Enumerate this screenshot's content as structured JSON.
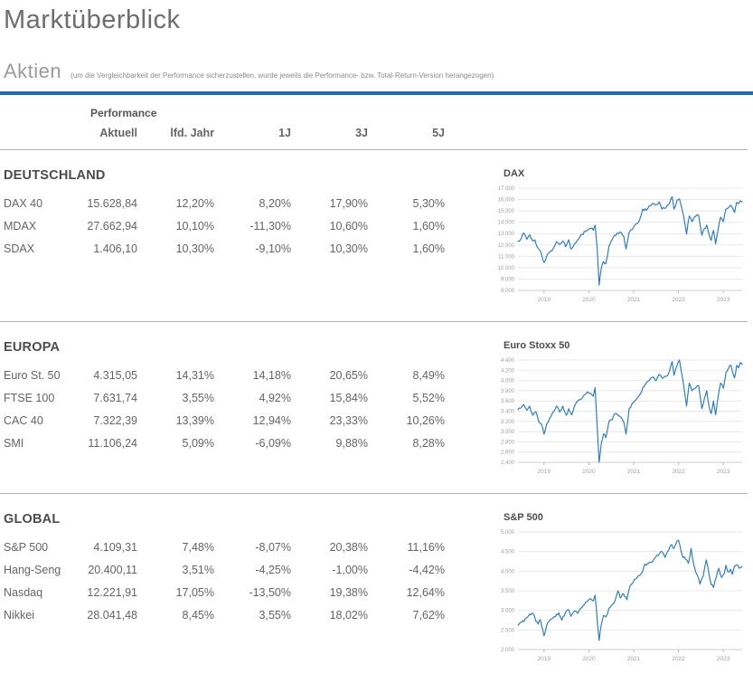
{
  "page": {
    "title": "Marktüberblick",
    "section_label": "Aktien",
    "section_note": "(um die Vergleichbarkeit der Performance sicherzustellen, wurde jeweils die Performance- bzw. Total-Return-Version herangezogen)"
  },
  "colors": {
    "accent_rule": "#1f6fb8",
    "chart_line": "#2979c8",
    "title_text": "#6d6d6d",
    "muted_text": "#9a9a9a",
    "table_text": "#646464",
    "heading_text": "#4c4c4c",
    "grid_line": "#e8e8e8",
    "divider": "#b3b3b3",
    "axis_label": "#a0a0a0"
  },
  "table": {
    "group_header": "Performance",
    "columns": [
      "Aktuell",
      "lfd. Jahr",
      "1J",
      "3J",
      "5J"
    ],
    "sections": [
      {
        "title": "DEUTSCHLAND",
        "rows": [
          {
            "label": "DAX 40",
            "values": [
              "15.628,84",
              "12,20%",
              "8,20%",
              "17,90%",
              "5,30%"
            ]
          },
          {
            "label": "MDAX",
            "values": [
              "27.662,94",
              "10,10%",
              "-11,30%",
              "10,60%",
              "1,60%"
            ]
          },
          {
            "label": "SDAX",
            "values": [
              "1.406,10",
              "10,30%",
              "-9,10%",
              "10,30%",
              "1,60%"
            ]
          }
        ]
      },
      {
        "title": "EUROPA",
        "rows": [
          {
            "label": "Euro St. 50",
            "values": [
              "4.315,05",
              "14,31%",
              "14,18%",
              "20,65%",
              "8,49%"
            ]
          },
          {
            "label": "FTSE 100",
            "values": [
              "7.631,74",
              "3,55%",
              "4,92%",
              "15,84%",
              "5,52%"
            ]
          },
          {
            "label": "CAC 40",
            "values": [
              "7.322,39",
              "13,39%",
              "12,94%",
              "23,33%",
              "10,26%"
            ]
          },
          {
            "label": "SMI",
            "values": [
              "11.106,24",
              "5,09%",
              "-6,09%",
              "9,88%",
              "8,28%"
            ]
          }
        ]
      },
      {
        "title": "GLOBAL",
        "rows": [
          {
            "label": "S&P 500",
            "values": [
              "4.109,31",
              "7,48%",
              "-8,07%",
              "20,38%",
              "11,16%"
            ]
          },
          {
            "label": "Hang-Seng",
            "values": [
              "20.400,11",
              "3,51%",
              "-4,25%",
              "-1,00%",
              "-4,42%"
            ]
          },
          {
            "label": "Nasdaq",
            "values": [
              "12.221,91",
              "17,05%",
              "-13,50%",
              "19,38%",
              "12,64%"
            ]
          },
          {
            "label": "Nikkei",
            "values": [
              "28.041,48",
              "8,45%",
              "3,55%",
              "18,02%",
              "7,62%"
            ]
          }
        ]
      }
    ]
  },
  "chart_data": [
    {
      "type": "line",
      "title": "DAX",
      "ylabel": "",
      "xlabel": "",
      "ylim": [
        8000,
        17000
      ],
      "y_step": 1000,
      "xlim": [
        2018.42,
        2023.42
      ],
      "x_ticks": [
        2019,
        2020,
        2021,
        2022,
        2023
      ],
      "y_tick_labels": [
        "8.000",
        "9.000",
        "10.000",
        "11.000",
        "12.000",
        "13.000",
        "14.000",
        "15.000",
        "16.000",
        "17.000"
      ],
      "grid": true,
      "legend": false,
      "points": [
        [
          2018.42,
          12350
        ],
        [
          2018.5,
          12650
        ],
        [
          2018.55,
          13050
        ],
        [
          2018.62,
          12500
        ],
        [
          2018.68,
          12900
        ],
        [
          2018.75,
          12350
        ],
        [
          2018.8,
          12450
        ],
        [
          2018.85,
          11800
        ],
        [
          2018.92,
          11450
        ],
        [
          2019.0,
          10450
        ],
        [
          2019.06,
          11000
        ],
        [
          2019.12,
          11350
        ],
        [
          2019.2,
          11650
        ],
        [
          2019.28,
          12300
        ],
        [
          2019.35,
          12050
        ],
        [
          2019.42,
          12350
        ],
        [
          2019.48,
          11850
        ],
        [
          2019.55,
          12450
        ],
        [
          2019.6,
          11650
        ],
        [
          2019.68,
          12100
        ],
        [
          2019.75,
          12450
        ],
        [
          2019.85,
          12950
        ],
        [
          2019.95,
          13250
        ],
        [
          2020.04,
          13450
        ],
        [
          2020.1,
          13300
        ],
        [
          2020.14,
          13750
        ],
        [
          2020.19,
          11500
        ],
        [
          2020.23,
          8450
        ],
        [
          2020.28,
          10000
        ],
        [
          2020.33,
          10550
        ],
        [
          2020.38,
          10350
        ],
        [
          2020.45,
          11900
        ],
        [
          2020.5,
          12350
        ],
        [
          2020.57,
          12850
        ],
        [
          2020.63,
          13050
        ],
        [
          2020.7,
          13150
        ],
        [
          2020.78,
          12750
        ],
        [
          2020.83,
          11650
        ],
        [
          2020.9,
          13100
        ],
        [
          2020.97,
          13350
        ],
        [
          2021.05,
          13850
        ],
        [
          2021.12,
          14050
        ],
        [
          2021.2,
          15150
        ],
        [
          2021.28,
          15050
        ],
        [
          2021.35,
          15450
        ],
        [
          2021.42,
          15650
        ],
        [
          2021.5,
          15550
        ],
        [
          2021.57,
          15800
        ],
        [
          2021.63,
          15150
        ],
        [
          2021.72,
          15250
        ],
        [
          2021.8,
          15650
        ],
        [
          2021.86,
          16250
        ],
        [
          2021.9,
          15150
        ],
        [
          2021.97,
          15950
        ],
        [
          2022.02,
          16050
        ],
        [
          2022.08,
          15150
        ],
        [
          2022.14,
          13950
        ],
        [
          2022.18,
          12950
        ],
        [
          2022.24,
          14550
        ],
        [
          2022.3,
          14050
        ],
        [
          2022.38,
          14500
        ],
        [
          2022.45,
          14600
        ],
        [
          2022.52,
          12850
        ],
        [
          2022.58,
          13450
        ],
        [
          2022.63,
          13750
        ],
        [
          2022.68,
          12950
        ],
        [
          2022.73,
          12400
        ],
        [
          2022.78,
          13300
        ],
        [
          2022.83,
          12100
        ],
        [
          2022.88,
          13250
        ],
        [
          2022.94,
          14450
        ],
        [
          2023.0,
          14050
        ],
        [
          2023.06,
          15150
        ],
        [
          2023.12,
          15300
        ],
        [
          2023.17,
          15500
        ],
        [
          2023.21,
          15200
        ],
        [
          2023.25,
          14850
        ],
        [
          2023.3,
          15750
        ],
        [
          2023.34,
          15650
        ],
        [
          2023.38,
          15900
        ],
        [
          2023.42,
          15800
        ]
      ]
    },
    {
      "type": "line",
      "title": "Euro Stoxx 50",
      "ylabel": "",
      "xlabel": "",
      "ylim": [
        2400,
        4400
      ],
      "y_step": 200,
      "xlim": [
        2018.42,
        2023.42
      ],
      "x_ticks": [
        2019,
        2020,
        2021,
        2022,
        2023
      ],
      "y_tick_labels": [
        "2.400",
        "2.600",
        "2.800",
        "3.000",
        "3.200",
        "3.400",
        "3.600",
        "3.800",
        "4.000",
        "4.200",
        "4.400"
      ],
      "grid": true,
      "legend": false,
      "points": [
        [
          2018.42,
          3430
        ],
        [
          2018.5,
          3480
        ],
        [
          2018.55,
          3530
        ],
        [
          2018.62,
          3420
        ],
        [
          2018.68,
          3500
        ],
        [
          2018.75,
          3320
        ],
        [
          2018.82,
          3390
        ],
        [
          2018.88,
          3200
        ],
        [
          2018.94,
          3150
        ],
        [
          2019.0,
          2950
        ],
        [
          2019.06,
          3150
        ],
        [
          2019.12,
          3250
        ],
        [
          2019.2,
          3380
        ],
        [
          2019.28,
          3500
        ],
        [
          2019.35,
          3380
        ],
        [
          2019.42,
          3500
        ],
        [
          2019.5,
          3320
        ],
        [
          2019.55,
          3450
        ],
        [
          2019.62,
          3330
        ],
        [
          2019.7,
          3530
        ],
        [
          2019.8,
          3620
        ],
        [
          2019.9,
          3720
        ],
        [
          2019.97,
          3780
        ],
        [
          2020.04,
          3750
        ],
        [
          2020.1,
          3690
        ],
        [
          2020.14,
          3860
        ],
        [
          2020.19,
          3050
        ],
        [
          2020.23,
          2400
        ],
        [
          2020.28,
          2790
        ],
        [
          2020.33,
          2960
        ],
        [
          2020.38,
          2880
        ],
        [
          2020.45,
          3200
        ],
        [
          2020.52,
          3230
        ],
        [
          2020.58,
          3350
        ],
        [
          2020.65,
          3320
        ],
        [
          2020.72,
          3280
        ],
        [
          2020.78,
          3180
        ],
        [
          2020.83,
          2950
        ],
        [
          2020.9,
          3450
        ],
        [
          2020.97,
          3560
        ],
        [
          2021.05,
          3620
        ],
        [
          2021.12,
          3700
        ],
        [
          2021.2,
          3850
        ],
        [
          2021.28,
          3950
        ],
        [
          2021.35,
          4000
        ],
        [
          2021.42,
          4060
        ],
        [
          2021.5,
          4000
        ],
        [
          2021.57,
          4120
        ],
        [
          2021.63,
          4050
        ],
        [
          2021.72,
          4080
        ],
        [
          2021.8,
          4180
        ],
        [
          2021.86,
          4370
        ],
        [
          2021.9,
          4100
        ],
        [
          2021.97,
          4300
        ],
        [
          2022.02,
          4400
        ],
        [
          2022.08,
          4100
        ],
        [
          2022.14,
          3750
        ],
        [
          2022.18,
          3500
        ],
        [
          2022.24,
          3950
        ],
        [
          2022.3,
          3800
        ],
        [
          2022.38,
          3850
        ],
        [
          2022.45,
          3900
        ],
        [
          2022.52,
          3450
        ],
        [
          2022.58,
          3650
        ],
        [
          2022.63,
          3800
        ],
        [
          2022.68,
          3500
        ],
        [
          2022.73,
          3350
        ],
        [
          2022.78,
          3600
        ],
        [
          2022.83,
          3330
        ],
        [
          2022.88,
          3650
        ],
        [
          2022.94,
          3950
        ],
        [
          2023.0,
          3850
        ],
        [
          2023.06,
          4150
        ],
        [
          2023.12,
          4250
        ],
        [
          2023.17,
          4300
        ],
        [
          2023.21,
          4150
        ],
        [
          2023.25,
          4050
        ],
        [
          2023.3,
          4300
        ],
        [
          2023.34,
          4250
        ],
        [
          2023.38,
          4350
        ],
        [
          2023.42,
          4320
        ]
      ]
    },
    {
      "type": "line",
      "title": "S&P 500",
      "ylabel": "",
      "xlabel": "",
      "ylim": [
        2000,
        5000
      ],
      "y_step": 500,
      "xlim": [
        2018.42,
        2023.42
      ],
      "x_ticks": [
        2019,
        2020,
        2021,
        2022,
        2023
      ],
      "y_tick_labels": [
        "2.000",
        "2.500",
        "3.000",
        "3.500",
        "4.000",
        "4.500",
        "5.000"
      ],
      "grid": true,
      "legend": false,
      "points": [
        [
          2018.42,
          2620
        ],
        [
          2018.5,
          2700
        ],
        [
          2018.58,
          2780
        ],
        [
          2018.65,
          2850
        ],
        [
          2018.73,
          2930
        ],
        [
          2018.78,
          2880
        ],
        [
          2018.82,
          2720
        ],
        [
          2018.87,
          2650
        ],
        [
          2018.92,
          2760
        ],
        [
          2019.0,
          2350
        ],
        [
          2019.06,
          2620
        ],
        [
          2019.12,
          2720
        ],
        [
          2019.2,
          2800
        ],
        [
          2019.28,
          2900
        ],
        [
          2019.33,
          2940
        ],
        [
          2019.4,
          2750
        ],
        [
          2019.48,
          2950
        ],
        [
          2019.55,
          3020
        ],
        [
          2019.6,
          2850
        ],
        [
          2019.68,
          2980
        ],
        [
          2019.75,
          2920
        ],
        [
          2019.82,
          3050
        ],
        [
          2019.9,
          3140
        ],
        [
          2019.97,
          3230
        ],
        [
          2020.04,
          3300
        ],
        [
          2020.1,
          3240
        ],
        [
          2020.14,
          3390
        ],
        [
          2020.19,
          2710
        ],
        [
          2020.23,
          2230
        ],
        [
          2020.28,
          2650
        ],
        [
          2020.33,
          2870
        ],
        [
          2020.38,
          2830
        ],
        [
          2020.45,
          3050
        ],
        [
          2020.52,
          3150
        ],
        [
          2020.58,
          3230
        ],
        [
          2020.65,
          3500
        ],
        [
          2020.7,
          3320
        ],
        [
          2020.75,
          3420
        ],
        [
          2020.8,
          3350
        ],
        [
          2020.85,
          3270
        ],
        [
          2020.92,
          3620
        ],
        [
          2020.98,
          3700
        ],
        [
          2021.05,
          3800
        ],
        [
          2021.1,
          3880
        ],
        [
          2021.17,
          3940
        ],
        [
          2021.25,
          4180
        ],
        [
          2021.32,
          4200
        ],
        [
          2021.4,
          4230
        ],
        [
          2021.48,
          4350
        ],
        [
          2021.55,
          4400
        ],
        [
          2021.63,
          4500
        ],
        [
          2021.7,
          4350
        ],
        [
          2021.78,
          4530
        ],
        [
          2021.85,
          4680
        ],
        [
          2021.9,
          4580
        ],
        [
          2021.97,
          4770
        ],
        [
          2022.0,
          4790
        ],
        [
          2022.06,
          4500
        ],
        [
          2022.1,
          4350
        ],
        [
          2022.16,
          4300
        ],
        [
          2022.22,
          4200
        ],
        [
          2022.28,
          4580
        ],
        [
          2022.35,
          4130
        ],
        [
          2022.42,
          3900
        ],
        [
          2022.48,
          3670
        ],
        [
          2022.55,
          3870
        ],
        [
          2022.62,
          4290
        ],
        [
          2022.68,
          3930
        ],
        [
          2022.73,
          3650
        ],
        [
          2022.78,
          3580
        ],
        [
          2022.85,
          3870
        ],
        [
          2022.9,
          4070
        ],
        [
          2022.96,
          3840
        ],
        [
          2023.02,
          3940
        ],
        [
          2023.06,
          4150
        ],
        [
          2023.1,
          3980
        ],
        [
          2023.16,
          4050
        ],
        [
          2023.2,
          3920
        ],
        [
          2023.25,
          4130
        ],
        [
          2023.3,
          4160
        ],
        [
          2023.35,
          4080
        ],
        [
          2023.42,
          4120
        ]
      ]
    }
  ]
}
